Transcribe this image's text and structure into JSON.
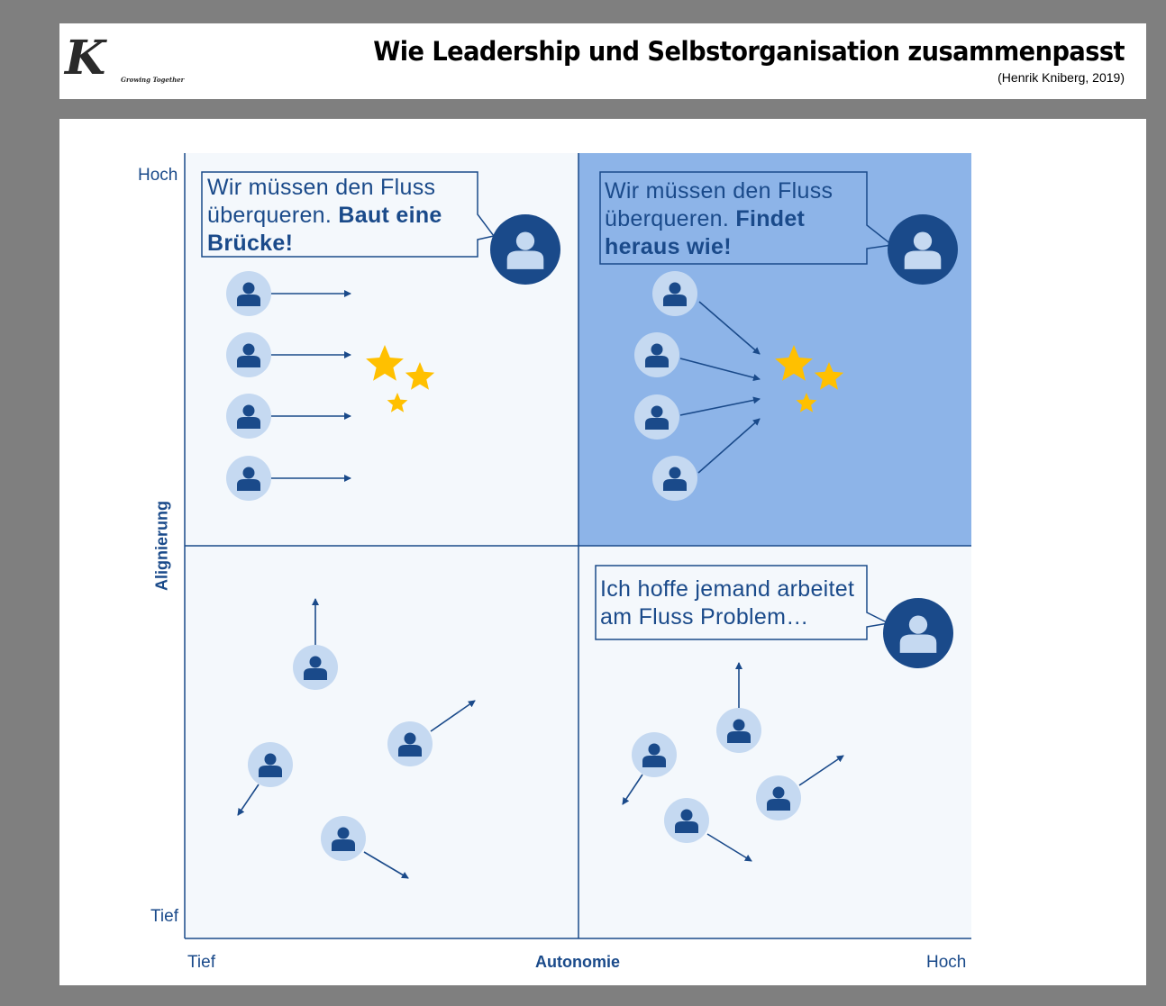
{
  "header": {
    "title": "Wie Leadership und Selbstorganisation zusammenpasst",
    "subtitle": "(Henrik Kniberg, 2019)",
    "logo_letter": "K",
    "logo_tagline": "Growing Together"
  },
  "diagram": {
    "y_axis": {
      "label": "Alignierung",
      "high": "Hoch",
      "low": "Tief"
    },
    "x_axis": {
      "label": "Autonomie",
      "high": "Hoch",
      "low": "Tief"
    },
    "quadrants": {
      "top_left": {
        "callout_normal": "Wir müssen den Fluss überqueren.",
        "callout_bold": "Baut eine Brücke!"
      },
      "top_right": {
        "callout_normal": "Wir müssen den Fluss überqueren.",
        "callout_bold": "Findet heraus wie!"
      },
      "bottom_right": {
        "callout_normal": "Ich hoffe jemand arbeitet am Fluss Problem…"
      }
    },
    "colors": {
      "dark_blue": "#1a4a8a",
      "light_circle": "#c5d9f1",
      "quadrant_bg": "#f4f8fc",
      "highlight_bg": "#8db4e8",
      "star": "#ffc000"
    },
    "icons": [
      "person-icon",
      "star-icon",
      "arrow-icon"
    ]
  }
}
